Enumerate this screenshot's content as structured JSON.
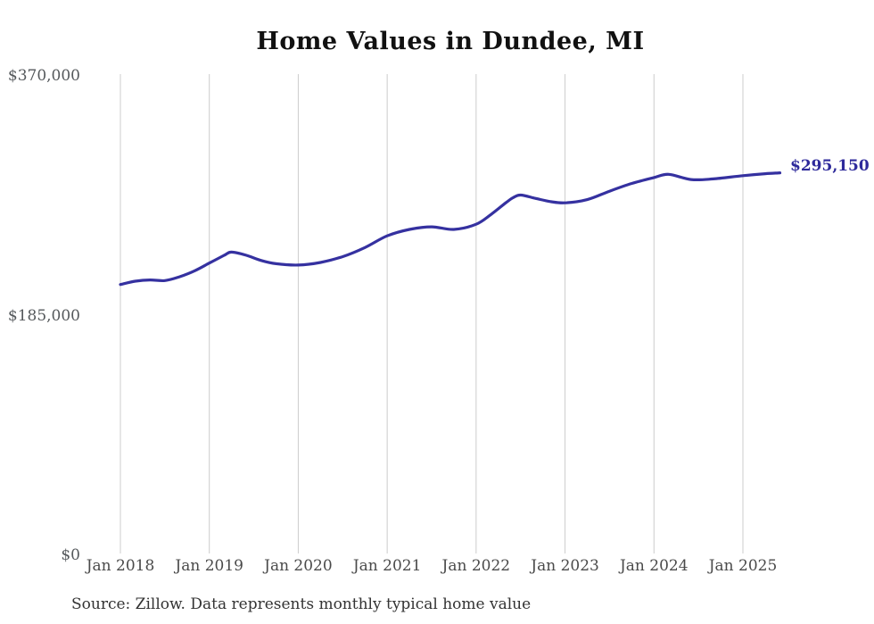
{
  "title": "Home Values in Dundee, MI",
  "source_note": "Source: Zillow. Data represents monthly typical home value",
  "colors": {
    "line": "#3531a0",
    "end_label": "#2e2a9b",
    "grid": "#cccccc",
    "title": "#111111",
    "y_axis_text": "#55595c",
    "x_axis_text": "#4a4a4a",
    "source_text": "#333333"
  },
  "chart_data": {
    "type": "line",
    "title": "Home Values in Dundee, MI",
    "xlabel": "",
    "ylabel": "",
    "x_tick_labels": [
      "Jan 2018",
      "Jan 2019",
      "Jan 2020",
      "Jan 2021",
      "Jan 2022",
      "Jan 2023",
      "Jan 2024",
      "Jan 2025"
    ],
    "y_ticks": [
      0,
      185000,
      370000
    ],
    "y_tick_labels": [
      "$0",
      "$185,000",
      "$370,000"
    ],
    "ylim": [
      0,
      370000
    ],
    "grid": "vertical-only",
    "legend_position": "none",
    "end_annotation": {
      "text": "$295,150",
      "value": 295150,
      "date": "2025-06"
    },
    "series": [
      {
        "name": "Monthly typical home value",
        "points": [
          {
            "date": "2018-01",
            "value": 209000
          },
          {
            "date": "2018-03",
            "value": 211500
          },
          {
            "date": "2018-05",
            "value": 212500
          },
          {
            "date": "2018-07",
            "value": 212000
          },
          {
            "date": "2018-09",
            "value": 215000
          },
          {
            "date": "2018-11",
            "value": 219500
          },
          {
            "date": "2019-01",
            "value": 225500
          },
          {
            "date": "2019-03",
            "value": 231500
          },
          {
            "date": "2019-04",
            "value": 234000
          },
          {
            "date": "2019-06",
            "value": 231500
          },
          {
            "date": "2019-08",
            "value": 227500
          },
          {
            "date": "2019-10",
            "value": 225000
          },
          {
            "date": "2020-01",
            "value": 224000
          },
          {
            "date": "2020-04",
            "value": 226000
          },
          {
            "date": "2020-07",
            "value": 230500
          },
          {
            "date": "2020-10",
            "value": 237500
          },
          {
            "date": "2021-01",
            "value": 246500
          },
          {
            "date": "2021-04",
            "value": 251500
          },
          {
            "date": "2021-07",
            "value": 253500
          },
          {
            "date": "2021-10",
            "value": 251500
          },
          {
            "date": "2022-01",
            "value": 255500
          },
          {
            "date": "2022-03",
            "value": 263000
          },
          {
            "date": "2022-05",
            "value": 272000
          },
          {
            "date": "2022-06",
            "value": 276000
          },
          {
            "date": "2022-07",
            "value": 278000
          },
          {
            "date": "2022-09",
            "value": 275500
          },
          {
            "date": "2022-11",
            "value": 273000
          },
          {
            "date": "2023-01",
            "value": 272000
          },
          {
            "date": "2023-04",
            "value": 274500
          },
          {
            "date": "2023-07",
            "value": 281000
          },
          {
            "date": "2023-10",
            "value": 287000
          },
          {
            "date": "2024-01",
            "value": 291500
          },
          {
            "date": "2024-03",
            "value": 294000
          },
          {
            "date": "2024-06",
            "value": 290000
          },
          {
            "date": "2024-09",
            "value": 290500
          },
          {
            "date": "2025-01",
            "value": 293000
          },
          {
            "date": "2025-04",
            "value": 294500
          },
          {
            "date": "2025-06",
            "value": 295150
          }
        ]
      }
    ]
  }
}
